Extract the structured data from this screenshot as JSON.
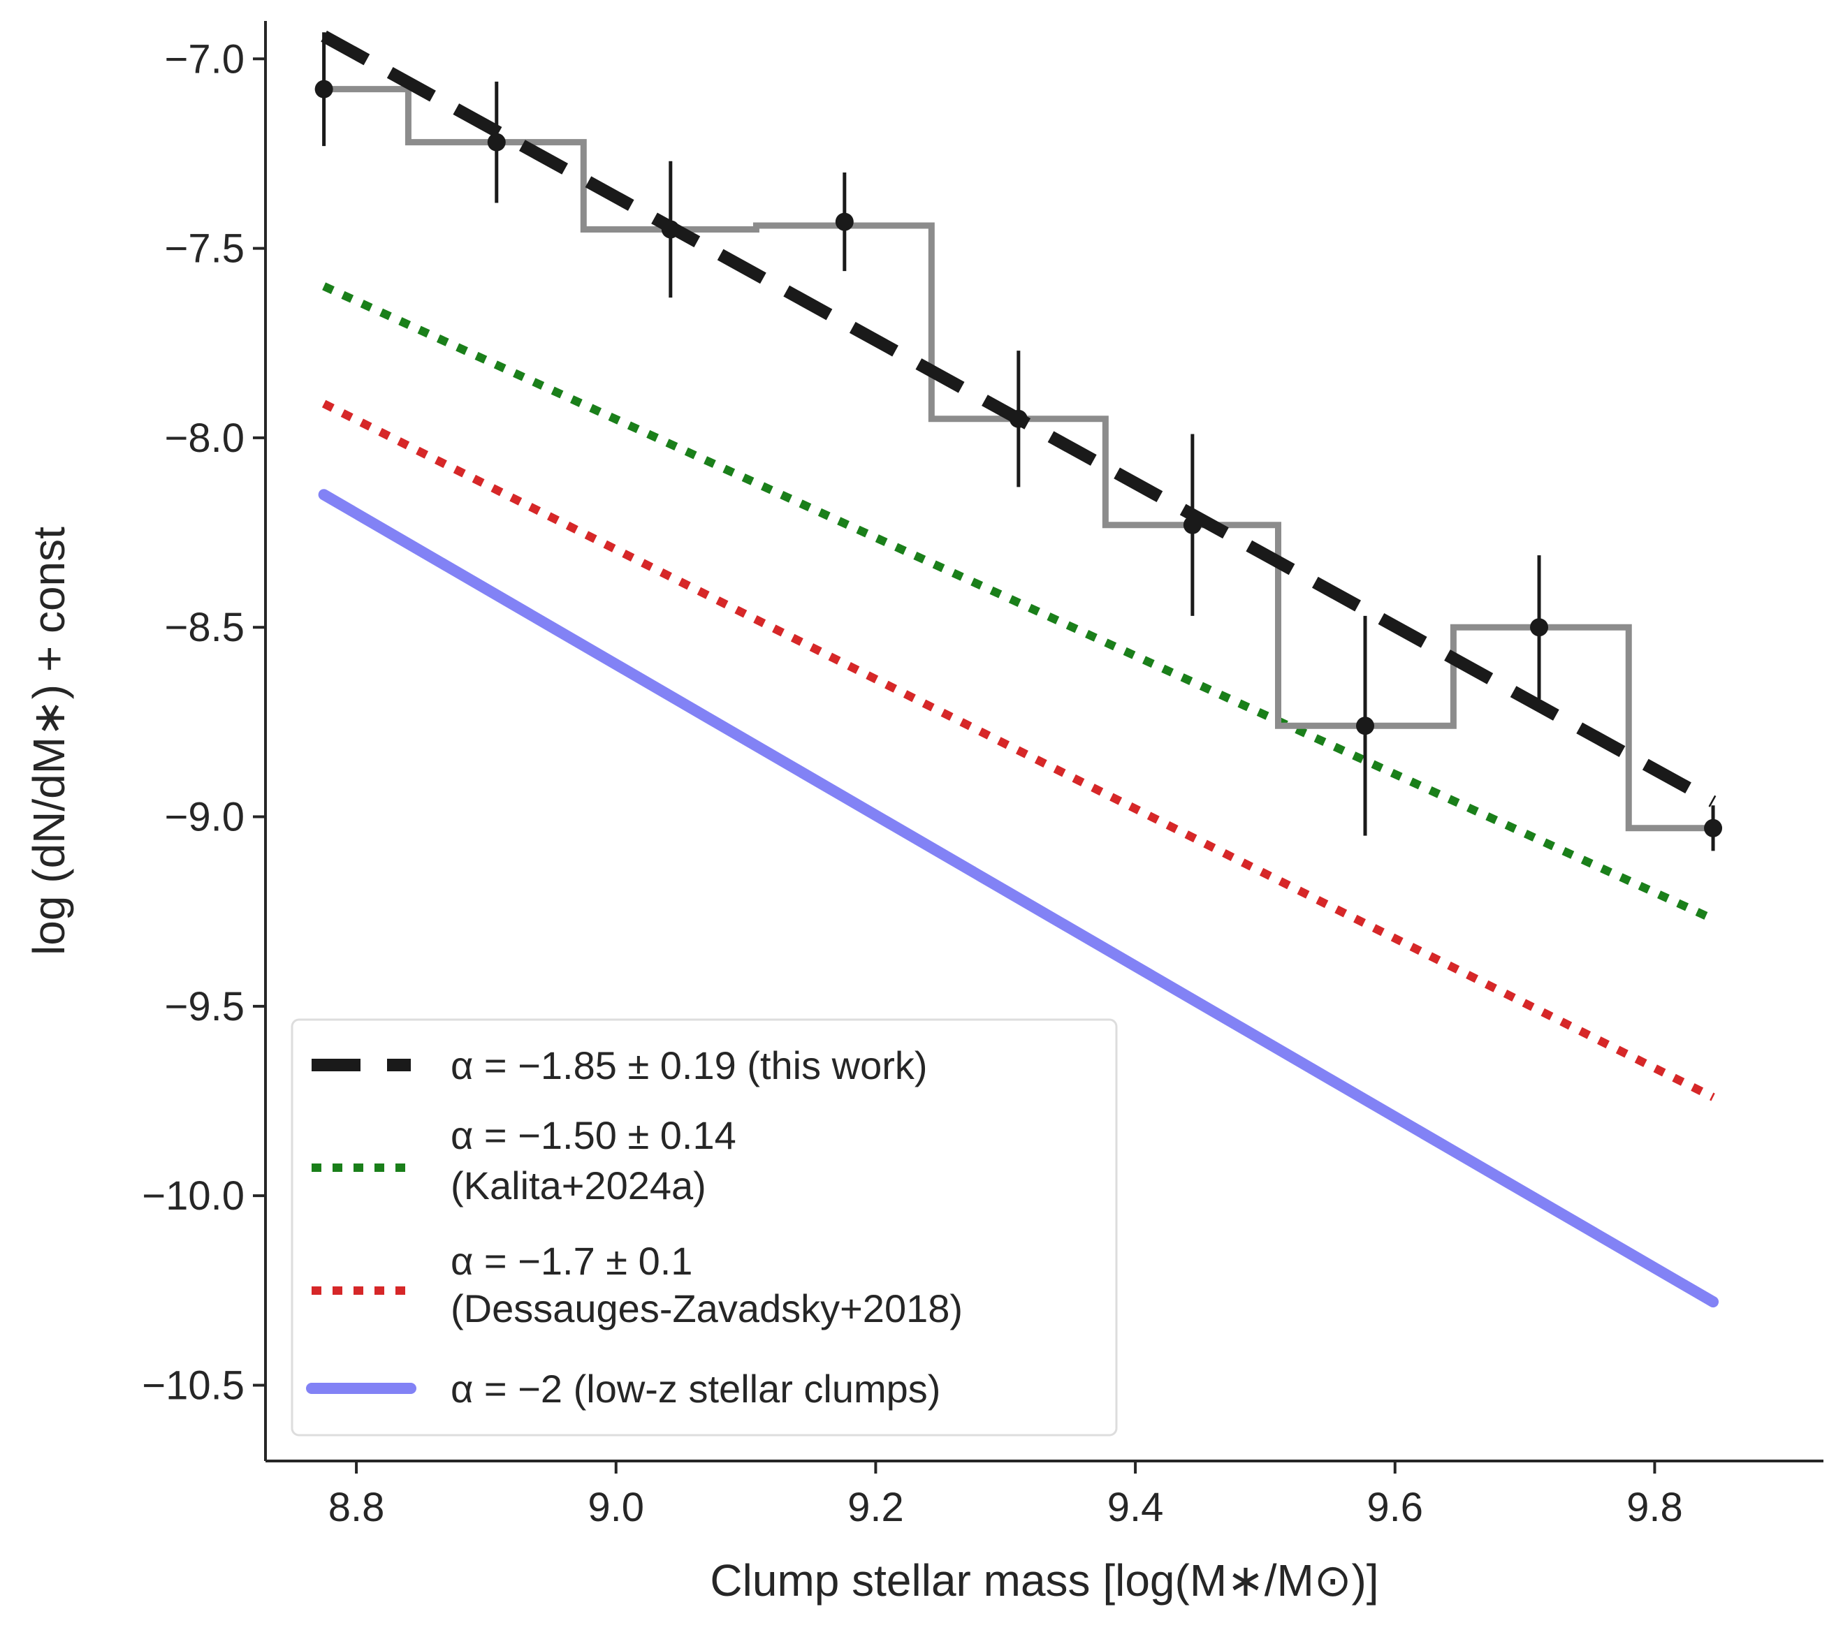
{
  "chart_data": {
    "type": "line",
    "xlabel": "Clump stellar mass [log(M∗/M⊙)]",
    "ylabel": "log (dN/dM∗) + const",
    "xlim": [
      8.73,
      9.93
    ],
    "ylim": [
      -10.7,
      -6.9
    ],
    "xticks": [
      8.8,
      9.0,
      9.2,
      9.4,
      9.6,
      9.8
    ],
    "xtick_labels": [
      "8.8",
      "9.0",
      "9.2",
      "9.4",
      "9.6",
      "9.8"
    ],
    "yticks": [
      -7.0,
      -7.5,
      -8.0,
      -8.5,
      -9.0,
      -9.5,
      -10.0,
      -10.5
    ],
    "ytick_labels": [
      "−7.0",
      "−7.5",
      "−8.0",
      "−8.5",
      "−9.0",
      "−9.5",
      "−10.0",
      "−10.5"
    ],
    "histogram": {
      "color": "#8c8c8c",
      "edges": [
        8.775,
        8.84,
        8.975,
        9.108,
        9.243,
        9.377,
        9.51,
        9.645,
        9.78,
        9.845
      ],
      "values": [
        -7.08,
        -7.22,
        -7.45,
        -7.44,
        -7.95,
        -8.23,
        -8.76,
        -8.5,
        -9.03
      ]
    },
    "points": {
      "color": "#1a1a1a",
      "x": [
        8.775,
        8.908,
        9.042,
        9.176,
        9.31,
        9.444,
        9.577,
        9.711,
        9.845
      ],
      "y": [
        -7.08,
        -7.22,
        -7.45,
        -7.43,
        -7.95,
        -8.23,
        -8.76,
        -8.5,
        -9.03
      ],
      "yerr": [
        0.15,
        0.16,
        0.18,
        0.13,
        0.18,
        0.24,
        0.29,
        0.19,
        0.06
      ]
    },
    "series": [
      {
        "name": "α = −1.85 ± 0.19 (this work)",
        "style": "dashed",
        "color": "#1a1a1a",
        "x": [
          8.775,
          9.845
        ],
        "y": [
          -6.94,
          -8.96
        ]
      },
      {
        "name": "α = −1.50 ± 0.14",
        "name2": "(Kalita+2024a)",
        "style": "dotted",
        "color": "#1a7f1a",
        "x": [
          8.775,
          9.845
        ],
        "y": [
          -7.6,
          -9.27
        ]
      },
      {
        "name": "α = −1.7 ± 0.1",
        "name2": "(Dessauges-Zavadsky+2018)",
        "style": "dotted",
        "color": "#d62728",
        "x": [
          8.775,
          9.845
        ],
        "y": [
          -7.91,
          -9.74
        ]
      },
      {
        "name": "α = −2 (low-z stellar clumps)",
        "style": "solid",
        "color": "#8282f5",
        "x": [
          8.775,
          9.845
        ],
        "y": [
          -8.15,
          -10.28
        ]
      }
    ],
    "legend": "lower-left"
  }
}
